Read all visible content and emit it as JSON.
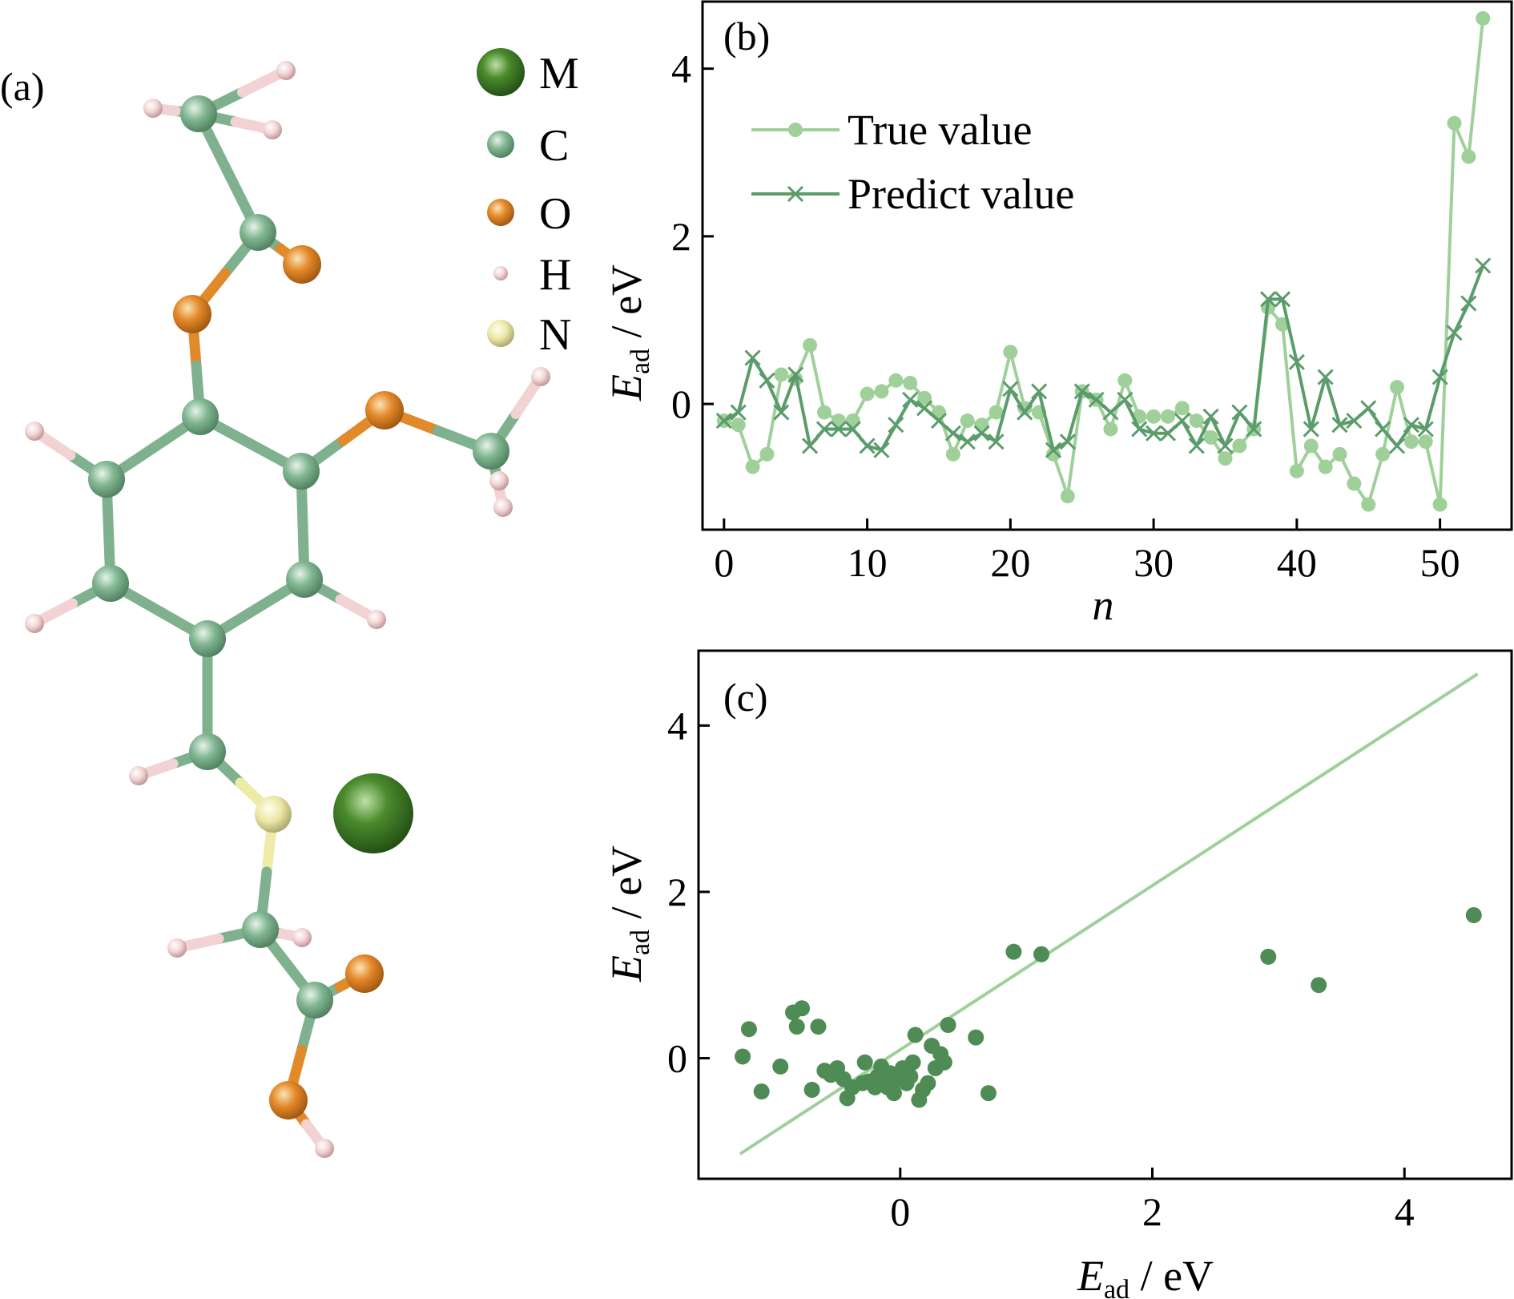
{
  "panel_a": {
    "label": "(a)",
    "legend": [
      {
        "symbol": "M",
        "color": "#3f7a26",
        "kind": "large"
      },
      {
        "symbol": "C",
        "color": "#7fb18e",
        "kind": "medium"
      },
      {
        "symbol": "O",
        "color": "#e08a2a",
        "kind": "medium"
      },
      {
        "symbol": "H",
        "color": "#f2d2d2",
        "kind": "small"
      },
      {
        "symbol": "N",
        "color": "#eeeba8",
        "kind": "medium"
      }
    ]
  },
  "chart_data": [
    {
      "panel": "(b)",
      "type": "line",
      "xlabel": "n",
      "ylabel_main": "E",
      "ylabel_sub": "ad",
      "ylabel_unit": " / eV",
      "xlim": [
        -1.5,
        55
      ],
      "ylim": [
        -1.5,
        4.8
      ],
      "xticks": [
        0,
        10,
        20,
        30,
        40,
        50
      ],
      "yticks": [
        0,
        2,
        4
      ],
      "legend_position": "top-left",
      "x": [
        0,
        1,
        2,
        3,
        4,
        5,
        6,
        7,
        8,
        9,
        10,
        11,
        12,
        13,
        14,
        15,
        16,
        17,
        18,
        19,
        20,
        21,
        22,
        23,
        24,
        25,
        26,
        27,
        28,
        29,
        30,
        31,
        32,
        33,
        34,
        35,
        36,
        37,
        38,
        39,
        40,
        41,
        42,
        43,
        44,
        45,
        46,
        47,
        48,
        49,
        50,
        51,
        52,
        53
      ],
      "series": [
        {
          "name": "True value",
          "color": "#9fd09a",
          "marker": "circle",
          "values": [
            -0.2,
            -0.25,
            -0.75,
            -0.6,
            0.35,
            0.3,
            0.7,
            -0.1,
            -0.2,
            -0.2,
            0.12,
            0.15,
            0.28,
            0.25,
            0.07,
            -0.1,
            -0.6,
            -0.2,
            -0.25,
            -0.1,
            0.62,
            -0.05,
            -0.1,
            -0.6,
            -1.1,
            0.15,
            0.05,
            -0.3,
            0.28,
            -0.15,
            -0.15,
            -0.15,
            -0.05,
            -0.2,
            -0.4,
            -0.65,
            -0.5,
            -0.3,
            1.15,
            0.95,
            -0.8,
            -0.5,
            -0.75,
            -0.6,
            -0.95,
            -1.2,
            -0.6,
            0.2,
            -0.45,
            -0.45,
            -1.2,
            3.35,
            2.95,
            4.6
          ]
        },
        {
          "name": "Predict value",
          "color": "#5b9c6b",
          "marker": "x",
          "values": [
            -0.2,
            -0.1,
            0.55,
            0.28,
            -0.1,
            0.35,
            -0.5,
            -0.3,
            -0.3,
            -0.3,
            -0.5,
            -0.55,
            -0.25,
            0.05,
            -0.05,
            -0.2,
            -0.35,
            -0.45,
            -0.35,
            -0.45,
            0.18,
            -0.1,
            0.15,
            -0.55,
            -0.45,
            0.15,
            0.05,
            -0.1,
            0.05,
            -0.3,
            -0.35,
            -0.35,
            -0.2,
            -0.5,
            -0.15,
            -0.5,
            -0.1,
            -0.3,
            1.25,
            1.25,
            0.5,
            -0.3,
            0.32,
            -0.25,
            -0.2,
            -0.05,
            -0.3,
            -0.5,
            -0.25,
            -0.3,
            0.32,
            0.85,
            1.2,
            1.65
          ]
        }
      ]
    },
    {
      "panel": "(c)",
      "type": "scatter",
      "xlabel_main": "E",
      "xlabel_sub": "ad",
      "xlabel_unit": " / eV",
      "ylabel_main": "E",
      "ylabel_sub": "ad",
      "ylabel_unit": " / eV",
      "xlim": [
        -1.6,
        4.85
      ],
      "ylim": [
        -1.45,
        4.9
      ],
      "xticks": [
        0,
        2,
        4
      ],
      "yticks": [
        0,
        2,
        4
      ],
      "point_color": "#4f8c55",
      "line_color": "#9fd09a",
      "reference_line": [
        [
          -1.27,
          -1.15
        ],
        [
          4.58,
          4.62
        ]
      ],
      "points": [
        [
          -1.25,
          0.02
        ],
        [
          -1.2,
          0.35
        ],
        [
          -1.1,
          -0.4
        ],
        [
          -0.95,
          -0.1
        ],
        [
          -0.85,
          0.55
        ],
        [
          -0.78,
          0.6
        ],
        [
          -0.82,
          0.38
        ],
        [
          -0.65,
          0.38
        ],
        [
          -0.7,
          -0.38
        ],
        [
          -0.6,
          -0.15
        ],
        [
          -0.55,
          -0.2
        ],
        [
          -0.5,
          -0.12
        ],
        [
          -0.45,
          -0.25
        ],
        [
          -0.42,
          -0.48
        ],
        [
          -0.38,
          -0.35
        ],
        [
          -0.3,
          -0.3
        ],
        [
          -0.28,
          -0.05
        ],
        [
          -0.25,
          -0.28
        ],
        [
          -0.2,
          -0.35
        ],
        [
          -0.18,
          -0.22
        ],
        [
          -0.15,
          -0.1
        ],
        [
          -0.12,
          -0.3
        ],
        [
          -0.1,
          -0.35
        ],
        [
          -0.08,
          -0.18
        ],
        [
          -0.05,
          -0.42
        ],
        [
          0.0,
          -0.25
        ],
        [
          0.02,
          -0.12
        ],
        [
          0.05,
          -0.3
        ],
        [
          0.08,
          -0.22
        ],
        [
          0.1,
          -0.05
        ],
        [
          0.12,
          0.28
        ],
        [
          0.15,
          -0.5
        ],
        [
          0.18,
          -0.38
        ],
        [
          0.22,
          -0.3
        ],
        [
          0.25,
          0.15
        ],
        [
          0.28,
          -0.12
        ],
        [
          0.32,
          0.05
        ],
        [
          0.35,
          -0.05
        ],
        [
          0.38,
          0.4
        ],
        [
          0.6,
          0.25
        ],
        [
          0.7,
          -0.42
        ],
        [
          0.9,
          1.28
        ],
        [
          1.12,
          1.25
        ],
        [
          2.92,
          1.22
        ],
        [
          3.32,
          0.88
        ],
        [
          4.55,
          1.72
        ]
      ]
    }
  ]
}
